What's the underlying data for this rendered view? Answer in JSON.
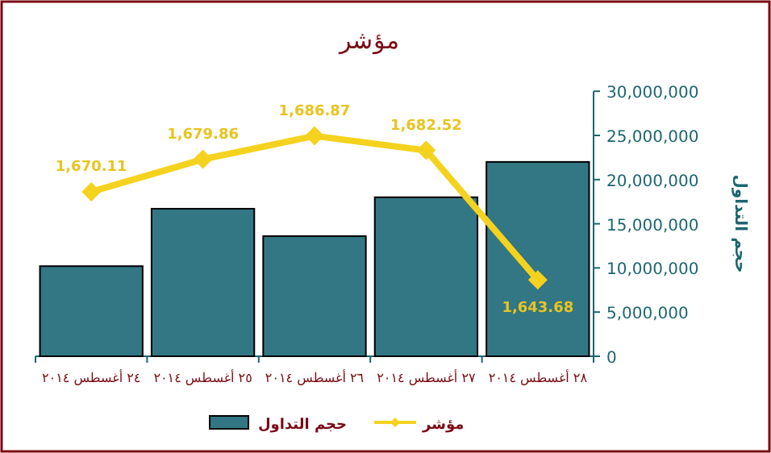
{
  "chart_data": {
    "type": "bar",
    "title": "مؤشر",
    "ylabel": "حجم التداول",
    "categories": [
      "٢٤ أغسطس ٢٠١٤",
      "٢٥ أغسطس ٢٠١٤",
      "٢٦ أغسطس ٢٠١٤",
      "٢٧ أغسطس ٢٠١٤",
      "٢٨ أغسطس ٢٠١٤"
    ],
    "series": [
      {
        "name": "حجم التداول",
        "color": "#337785",
        "values": [
          10200000,
          16700000,
          13600000,
          18000000,
          22000000
        ]
      },
      {
        "name": "مؤشر",
        "type": "line",
        "axis": "y2",
        "color": "#f5d21e",
        "marker": "diamond",
        "values": [
          1670.11,
          1679.86,
          1686.87,
          1682.52,
          1643.68
        ],
        "value_labels": [
          "1,670.11",
          "1,679.86",
          "1,686.87",
          "1,682.52",
          "1,643.68"
        ]
      }
    ],
    "ylim": [
      0,
      30000000
    ],
    "yticks": [
      {
        "value": 0,
        "label": "0"
      },
      {
        "value": 5000000,
        "label": "5,000,000"
      },
      {
        "value": 10000000,
        "label": "10,000,000"
      },
      {
        "value": 15000000,
        "label": "15,000,000"
      },
      {
        "value": 20000000,
        "label": "20,000,000"
      },
      {
        "value": 25000000,
        "label": "25,000,000"
      },
      {
        "value": 30000000,
        "label": "30,000,000"
      }
    ],
    "legend": "bottom",
    "grid": false
  }
}
